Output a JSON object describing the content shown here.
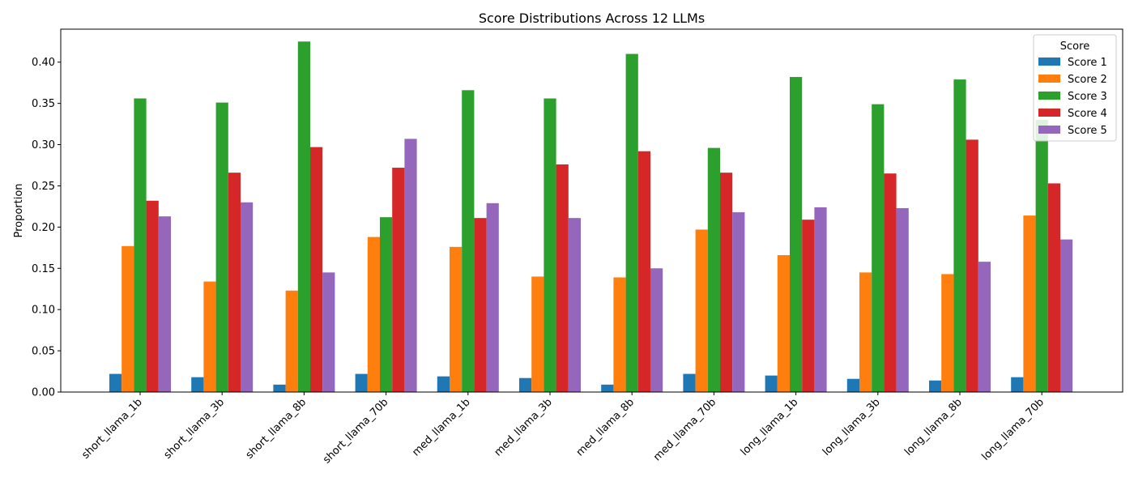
{
  "chart_data": {
    "type": "bar",
    "title": "Score Distributions Across 12 LLMs",
    "xlabel": "",
    "ylabel": "Proportion",
    "ylim": [
      0,
      0.44
    ],
    "yticks": [
      0.0,
      0.05,
      0.1,
      0.15,
      0.2,
      0.25,
      0.3,
      0.35,
      0.4
    ],
    "ytick_labels": [
      "0.00",
      "0.05",
      "0.10",
      "0.15",
      "0.20",
      "0.25",
      "0.30",
      "0.35",
      "0.40"
    ],
    "grid": false,
    "legend": {
      "title": "Score",
      "placement": "top-right"
    },
    "categories": [
      "short_llama_1b",
      "short_llama_3b",
      "short_llama_8b",
      "short_llama_70b",
      "med_llama_1b",
      "med_llama_3b",
      "med_llama_8b",
      "med_llama_70b",
      "long_llama_1b",
      "long_llama_3b",
      "long_llama_8b",
      "long_llama_70b"
    ],
    "series": [
      {
        "name": "Score 1",
        "color": "#1f77b4",
        "values": [
          0.022,
          0.018,
          0.009,
          0.022,
          0.019,
          0.017,
          0.009,
          0.022,
          0.02,
          0.016,
          0.014,
          0.018
        ]
      },
      {
        "name": "Score 2",
        "color": "#ff7f0e",
        "values": [
          0.177,
          0.134,
          0.123,
          0.188,
          0.176,
          0.14,
          0.139,
          0.197,
          0.166,
          0.145,
          0.143,
          0.214
        ]
      },
      {
        "name": "Score 3",
        "color": "#2ca02c",
        "values": [
          0.356,
          0.351,
          0.425,
          0.212,
          0.366,
          0.356,
          0.41,
          0.296,
          0.382,
          0.349,
          0.379,
          0.33
        ]
      },
      {
        "name": "Score 4",
        "color": "#d62728",
        "values": [
          0.232,
          0.266,
          0.297,
          0.272,
          0.211,
          0.276,
          0.292,
          0.266,
          0.209,
          0.265,
          0.306,
          0.253
        ]
      },
      {
        "name": "Score 5",
        "color": "#9467bd",
        "values": [
          0.213,
          0.23,
          0.145,
          0.307,
          0.229,
          0.211,
          0.15,
          0.218,
          0.224,
          0.223,
          0.158,
          0.185
        ]
      }
    ]
  }
}
